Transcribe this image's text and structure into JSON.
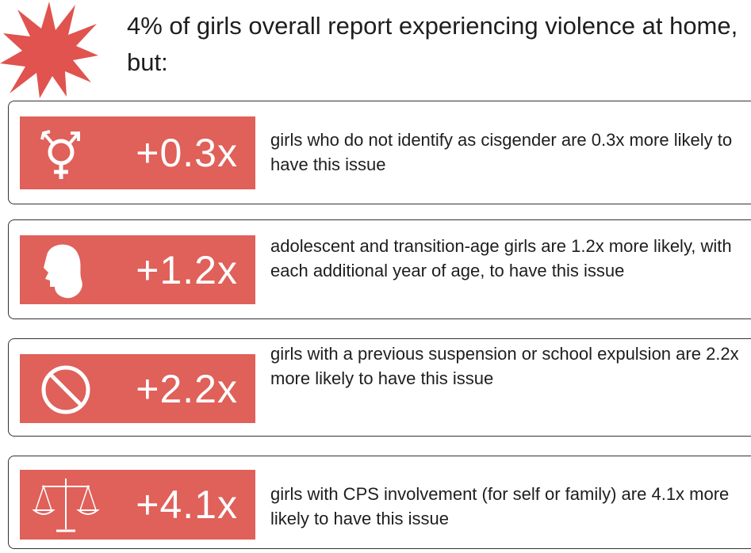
{
  "header": {
    "title": "4% of girls overall report experiencing violence at home, but:"
  },
  "items": [
    {
      "stat": "+0.3x",
      "text": "girls who do not identify as cisgender are 0.3x more likely to have this issue"
    },
    {
      "stat": "+1.2x",
      "text": "adolescent and transition-age girls are 1.2x more likely, with each additional year of age, to have this issue"
    },
    {
      "stat": "+2.2x",
      "text": "girls with a previous suspension or school expulsion are 2.2x more likely to have this issue"
    },
    {
      "stat": "+4.1x",
      "text": "girls with CPS involvement (for self or family) are 4.1x more likely to have this issue"
    }
  ]
}
